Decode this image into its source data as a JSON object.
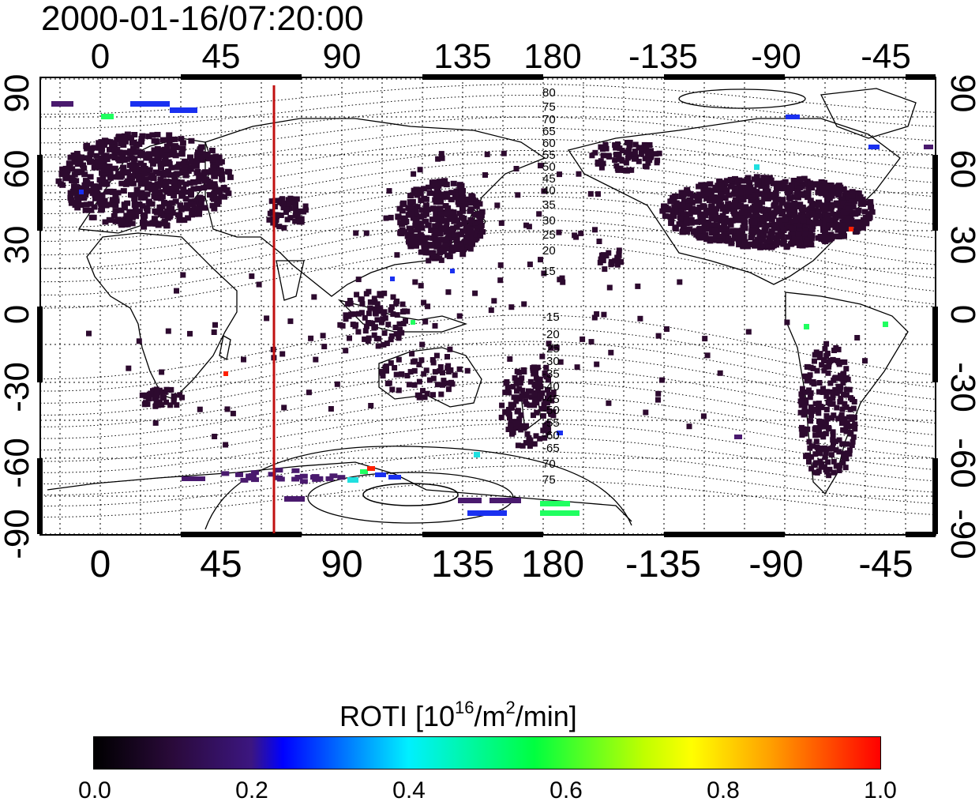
{
  "title": "2000-01-16/07:20:00",
  "axes": {
    "top_lon_labels": [
      "0",
      "45",
      "90",
      "135",
      "180",
      "-135",
      "-90",
      "-45"
    ],
    "bottom_lon_labels": [
      "0",
      "45",
      "90",
      "135",
      "180",
      "-135",
      "-90",
      "-45"
    ],
    "left_lat_labels": [
      "90",
      "60",
      "30",
      "0",
      "-30",
      "-60",
      "-90"
    ],
    "right_lat_labels": [
      "90",
      "60",
      "30",
      "0",
      "-30",
      "-60",
      "-90"
    ]
  },
  "contour_labels_north": [
    "80",
    "75",
    "70",
    "65",
    "60",
    "55",
    "50",
    "45",
    "40",
    "35",
    "30",
    "25",
    "20",
    "15"
  ],
  "contour_labels_south": [
    "-15",
    "-20",
    "-25",
    "-30",
    "-35",
    "-40",
    "-45",
    "-50",
    "-55",
    "-60",
    "-65",
    "70",
    "75"
  ],
  "marker_line": {
    "longitude": 70,
    "color": "#c01010"
  },
  "colorbar": {
    "title_prefix": "ROTI  [10",
    "title_sup1": "16",
    "title_mid": "/m",
    "title_sup2": "2",
    "title_suffix": "/min]",
    "tick_labels": [
      "0.0",
      "0.2",
      "0.4",
      "0.6",
      "0.8",
      "1.0"
    ]
  },
  "colors": {
    "low": "#2d0a2f",
    "purple": "#4a1a6e",
    "blue": "#1a30f0",
    "cyan": "#20e0e0",
    "green": "#20ff60",
    "red": "#ff2000",
    "marker": "#c01010"
  }
}
